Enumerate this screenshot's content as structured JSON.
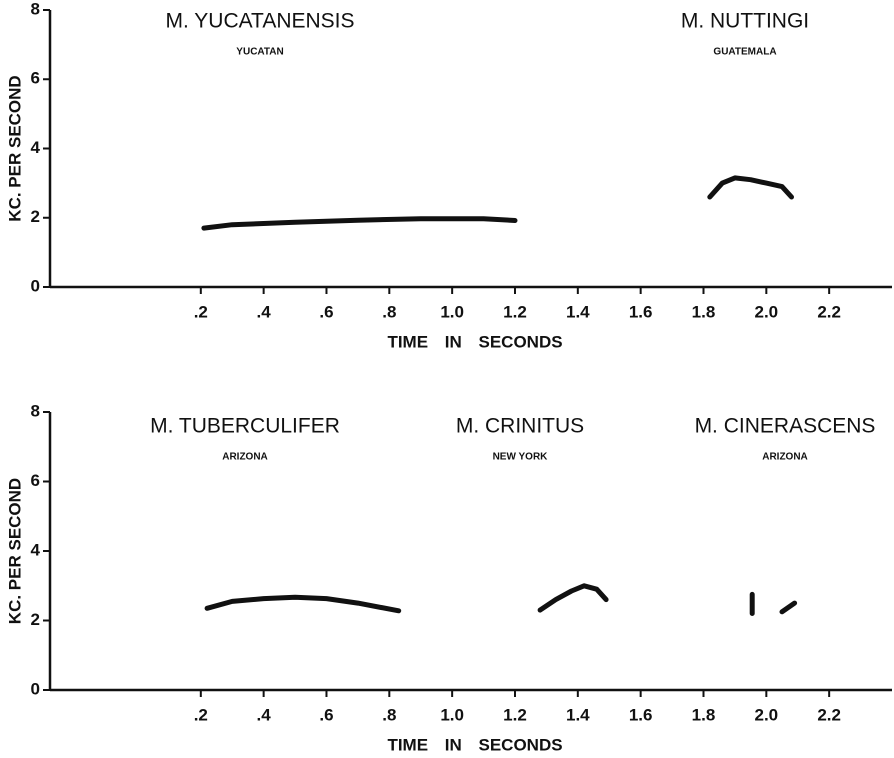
{
  "chart_data": [
    {
      "type": "line",
      "ylabel": "KC. PER SECOND",
      "xlabel": "TIME IN SECONDS",
      "xlim": [
        -0.28,
        2.4
      ],
      "ylim": [
        0,
        8
      ],
      "xticks": [
        {
          "value": 0.2,
          "label": ".2"
        },
        {
          "value": 0.4,
          "label": ".4"
        },
        {
          "value": 0.6,
          "label": ".6"
        },
        {
          "value": 0.8,
          "label": ".8"
        },
        {
          "value": 1,
          "label": "1.0"
        },
        1.2,
        1.4,
        1.6,
        1.8,
        {
          "value": 2,
          "label": "2.0"
        },
        2.2
      ],
      "yticks": [
        0,
        2,
        4,
        6,
        8
      ],
      "color": "#111111",
      "series": [
        {
          "name": "M. YUCATANENSIS",
          "location": "YUCATAN",
          "x": [
            0.21,
            0.3,
            0.5,
            0.7,
            0.9,
            1.1,
            1.2
          ],
          "values": [
            1.7,
            1.8,
            1.87,
            1.93,
            1.97,
            1.97,
            1.92
          ]
        },
        {
          "name": "M. NUTTINGI",
          "location": "GUATEMALA",
          "x": [
            1.82,
            1.86,
            1.9,
            1.95,
            2.0,
            2.05,
            2.08
          ],
          "values": [
            2.6,
            3.0,
            3.15,
            3.1,
            3.0,
            2.9,
            2.6
          ]
        }
      ]
    },
    {
      "type": "line",
      "ylabel": "KC. PER SECOND",
      "xlabel": "TIME IN SECONDS",
      "xlim": [
        -0.28,
        2.4
      ],
      "ylim": [
        0,
        8
      ],
      "xticks": [
        {
          "value": 0.2,
          "label": ".2"
        },
        {
          "value": 0.4,
          "label": ".4"
        },
        {
          "value": 0.6,
          "label": ".6"
        },
        {
          "value": 0.8,
          "label": ".8"
        },
        {
          "value": 1,
          "label": "1.0"
        },
        1.2,
        1.4,
        1.6,
        1.8,
        {
          "value": 2,
          "label": "2.0"
        },
        2.2
      ],
      "yticks": [
        0,
        2,
        4,
        6,
        8
      ],
      "color": "#111111",
      "series": [
        {
          "name": "M. TUBERCULIFER",
          "location": "ARIZONA",
          "x": [
            0.22,
            0.3,
            0.4,
            0.5,
            0.6,
            0.7,
            0.83
          ],
          "values": [
            2.35,
            2.55,
            2.63,
            2.67,
            2.63,
            2.5,
            2.28
          ]
        },
        {
          "name": "M. CRINITUS",
          "location": "NEW YORK",
          "x": [
            1.28,
            1.33,
            1.38,
            1.42,
            1.46,
            1.49
          ],
          "values": [
            2.3,
            2.6,
            2.85,
            3.0,
            2.9,
            2.6
          ]
        },
        {
          "name": "M. CINERASCENS",
          "location": "ARIZONA",
          "x": [
            1.955,
            1.955,
            2.0,
            2.05,
            2.09
          ],
          "values": [
            2.2,
            2.75,
            null,
            2.25,
            2.5
          ]
        }
      ]
    }
  ]
}
